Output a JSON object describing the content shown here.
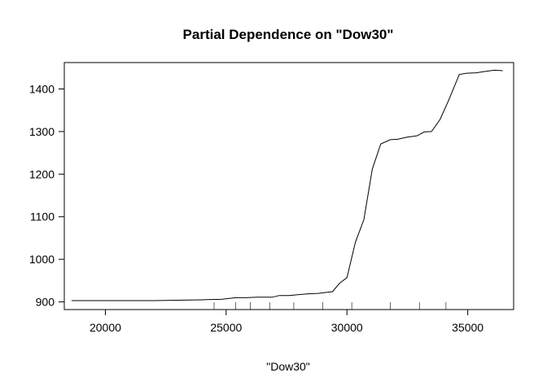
{
  "chart_data": {
    "type": "line",
    "title": "Partial Dependence on \"Dow30\"",
    "xlabel": "\"Dow30\"",
    "ylabel": "",
    "xlim": [
      18300,
      36900
    ],
    "ylim": [
      882,
      1462
    ],
    "xticks": [
      20000,
      25000,
      30000,
      35000
    ],
    "yticks": [
      900,
      1000,
      1100,
      1200,
      1300,
      1400
    ],
    "grid": false,
    "legend": "none",
    "series": [
      {
        "x": [
          18600,
          19000,
          20000,
          21000,
          22000,
          23000,
          24000,
          24800,
          25100,
          25400,
          25800,
          26300,
          26900,
          27200,
          27600,
          28000,
          28400,
          28800,
          29100,
          29400,
          29700,
          30000,
          30350,
          30700,
          31050,
          31400,
          31800,
          32100,
          32500,
          32900,
          33200,
          33500,
          33850,
          34200,
          34650,
          34950,
          35350,
          35700,
          36100,
          36450
        ],
        "y": [
          903,
          903,
          903,
          903,
          903,
          904,
          905,
          906,
          908,
          910,
          910,
          911,
          911,
          915,
          915,
          917,
          919,
          920,
          922,
          924,
          944,
          957,
          1040,
          1093,
          1212,
          1271,
          1281,
          1282,
          1287,
          1290,
          1299,
          1300,
          1328,
          1372,
          1434,
          1437,
          1438,
          1441,
          1444,
          1443
        ]
      }
    ],
    "rug_x": [
      24500,
      25400,
      26000,
      26800,
      27800,
      29000,
      30200,
      31800,
      33000,
      34100
    ],
    "color": "#000000"
  }
}
